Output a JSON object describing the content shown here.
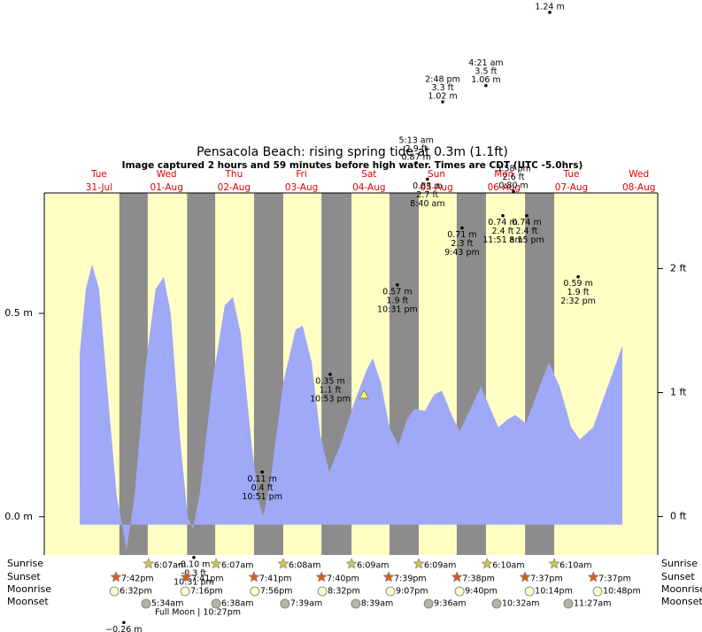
{
  "chart_data": {
    "type": "area",
    "title": "Pensacola Beach: rising  spring tide at 0.3m (1.1ft)",
    "subtitle": "Image captured 2 hours and 59 minutes before high water. Times are CDT (UTC -5.0hrs)",
    "xlim": [
      -7.5,
      210.7
    ],
    "ylim": [
      -0.094,
      0.796
    ],
    "yticks": [
      {
        "value": 0,
        "label": "0.0 m"
      },
      {
        "value": 0.5,
        "label": "0.5 m"
      }
    ],
    "y2lim": [
      -0.31,
      2.61
    ],
    "y2ticks": [
      {
        "value": 0,
        "label": "0 ft"
      },
      {
        "value": 1,
        "label": "1 ft"
      },
      {
        "value": 2,
        "label": "2 ft"
      }
    ],
    "color": "#a0a8f8",
    "background": "#ffffc4",
    "night_color": "#8c8c8c",
    "days": [
      {
        "x": 12,
        "weekday": "Tue",
        "date": "31-Jul"
      },
      {
        "x": 36,
        "weekday": "Wed",
        "date": "01-Aug"
      },
      {
        "x": 60,
        "weekday": "Thu",
        "date": "02-Aug"
      },
      {
        "x": 84,
        "weekday": "Fri",
        "date": "03-Aug"
      },
      {
        "x": 108,
        "weekday": "Sat",
        "date": "04-Aug"
      },
      {
        "x": 132,
        "weekday": "Sun",
        "date": "05-Aug"
      },
      {
        "x": 156,
        "weekday": "Mon",
        "date": "06-Aug"
      },
      {
        "x": 180,
        "weekday": "Tue",
        "date": "07-Aug"
      },
      {
        "x": 204,
        "weekday": "Wed",
        "date": "08-Aug"
      }
    ],
    "nights": [
      [
        19.2,
        29.3
      ],
      [
        43.3,
        53.3
      ],
      [
        67.1,
        77.5
      ],
      [
        91.1,
        101.8
      ],
      [
        115.3,
        125.7
      ],
      [
        139.2,
        149.6
      ],
      [
        163.5,
        173.9
      ]
    ],
    "x": [
      5.1,
      7.3,
      9.5,
      12.0,
      15.1,
      18.3,
      21.8,
      24.6,
      28.7,
      32.1,
      35.0,
      37.5,
      40.7,
      43.5,
      45.4,
      47.9,
      52.3,
      56.7,
      59.6,
      62.4,
      66.2,
      68.7,
      70.3,
      72.8,
      77.5,
      81.9,
      84.4,
      87.6,
      90.7,
      93.9,
      98.0,
      102.7,
      107.1,
      109.3,
      112.2,
      115.3,
      118.4,
      121.6,
      124.1,
      127.9,
      131.1,
      133.9,
      137.4,
      140.2,
      143.7,
      147.8,
      150.9,
      154.0,
      157.5,
      160.0,
      163.8,
      167.6,
      172.0,
      175.8,
      179.9,
      183.0,
      187.7,
      193.4,
      198.1
    ],
    "values": [
      0.4,
      0.56,
      0.62,
      0.56,
      0.3,
      0.05,
      -0.08,
      0.05,
      0.38,
      0.56,
      0.59,
      0.5,
      0.2,
      0.0,
      -0.03,
      0.06,
      0.33,
      0.52,
      0.54,
      0.45,
      0.18,
      0.04,
      0.0,
      0.08,
      0.33,
      0.46,
      0.47,
      0.38,
      0.2,
      0.11,
      0.18,
      0.28,
      0.36,
      0.39,
      0.33,
      0.22,
      0.176,
      0.24,
      0.265,
      0.26,
      0.3,
      0.31,
      0.25,
      0.21,
      0.26,
      0.32,
      0.27,
      0.22,
      0.24,
      0.25,
      0.23,
      0.3,
      0.38,
      0.32,
      0.22,
      0.19,
      0.22,
      0.33,
      0.42
    ],
    "now": {
      "x": 106.2,
      "value": 0.3
    },
    "annotations": [
      {
        "x": 70.0,
        "value": 0.11,
        "lines": [
          "0.11 m",
          "0.4 ft",
          "10:51 pm"
        ],
        "placement": "below"
      },
      {
        "x": 94.2,
        "value": 0.35,
        "lines": [
          "0.35 m",
          "1.1 ft",
          "10:53 pm"
        ],
        "placement": "below"
      },
      {
        "x": 118.1,
        "value": 0.57,
        "lines": [
          "0.57 m",
          "1.9 ft",
          "10:31 pm"
        ],
        "placement": "below"
      },
      {
        "x": 141.1,
        "value": 0.71,
        "lines": [
          "0.71 m",
          "2.3 ft",
          "9:43 pm"
        ],
        "placement": "below"
      },
      {
        "x": 155.6,
        "value": 0.74,
        "lines": [
          "0.74 m",
          "2.4 ft",
          "11:51 am"
        ],
        "placement": "below"
      },
      {
        "x": 164.1,
        "value": 0.74,
        "lines": [
          "0.74 m",
          "2.4 ft",
          "8:15 pm"
        ],
        "placement": "below"
      },
      {
        "x": 182.4,
        "value": 0.59,
        "lines": [
          "0.59 m",
          "1.9 ft",
          "2:32 pm"
        ],
        "placement": "below"
      },
      {
        "x": 128.8,
        "value": 0.83,
        "lines": [
          "0.83 m",
          "2.7 ft",
          "8:40 am"
        ],
        "placement": "below"
      },
      {
        "x": 124.8,
        "value": 0.87,
        "lines": [
          "5:13 am",
          "2.9 ft",
          "0.87 m"
        ],
        "placement": "above"
      },
      {
        "x": 134.2,
        "value": 1.02,
        "lines": [
          "2:48 pm",
          "3.3 ft",
          "1.02 m"
        ],
        "placement": "above"
      },
      {
        "x": 149.6,
        "value": 1.06,
        "lines": [
          "4:21 am",
          "3.5 ft",
          "1.06 m"
        ],
        "placement": "above"
      },
      {
        "x": 159.4,
        "value": 0.8,
        "lines": [
          "5:58 pm",
          "2.6 ft",
          "0.80 m"
        ],
        "placement": "above"
      },
      {
        "x": 172.3,
        "value": 1.24,
        "lines": [
          "1.24 m"
        ],
        "placement": "above"
      },
      {
        "x": 45.7,
        "value": -0.1,
        "lines": [
          "-0.10 m",
          "-0.3 ft",
          "10:31 pm"
        ],
        "placement": "below"
      },
      {
        "x": 20.8,
        "value": -0.26,
        "lines": [
          "−0.26 m"
        ],
        "placement": "below"
      }
    ],
    "rows": [
      {
        "name": "Sunrise",
        "icon": "star",
        "color": "#c8c84a",
        "events": [
          {
            "x": 29.6,
            "time": "6:07am"
          },
          {
            "x": 53.6,
            "time": "6:07am"
          },
          {
            "x": 77.5,
            "time": "6:08am"
          },
          {
            "x": 101.8,
            "time": "6:09am"
          },
          {
            "x": 125.7,
            "time": "6:09am"
          },
          {
            "x": 150.0,
            "time": "6:10am"
          },
          {
            "x": 173.9,
            "time": "6:10am"
          }
        ]
      },
      {
        "name": "Sunset",
        "icon": "star",
        "color": "#d2601e",
        "events": [
          {
            "x": 18.0,
            "time": "7:42pm"
          },
          {
            "x": 42.9,
            "time": "7:41pm"
          },
          {
            "x": 67.1,
            "time": "7:41pm"
          },
          {
            "x": 91.1,
            "time": "7:40pm"
          },
          {
            "x": 115.0,
            "time": "7:39pm"
          },
          {
            "x": 139.3,
            "time": "7:38pm"
          },
          {
            "x": 163.5,
            "time": "7:37pm"
          },
          {
            "x": 187.8,
            "time": "7:37pm"
          }
        ]
      },
      {
        "name": "Moonrise",
        "icon": "circle",
        "color": "#ffffd0",
        "events": [
          {
            "x": 17.4,
            "time": "6:32pm"
          },
          {
            "x": 42.6,
            "time": "7:16pm"
          },
          {
            "x": 67.4,
            "time": "7:56pm"
          },
          {
            "x": 91.4,
            "time": "8:32pm"
          },
          {
            "x": 115.6,
            "time": "9:07pm"
          },
          {
            "x": 140.2,
            "time": "9:40pm"
          },
          {
            "x": 165.1,
            "time": "10:14pm"
          },
          {
            "x": 189.3,
            "time": "10:48pm"
          }
        ]
      },
      {
        "name": "Moonset",
        "icon": "circle",
        "color": "#b4b4a8",
        "events": [
          {
            "x": 28.7,
            "time": "5:34am"
          },
          {
            "x": 53.6,
            "time": "6:38am"
          },
          {
            "x": 78.1,
            "time": "7:39am"
          },
          {
            "x": 103.3,
            "time": "8:39am"
          },
          {
            "x": 129.2,
            "time": "9:36am"
          },
          {
            "x": 153.4,
            "time": "10:32am"
          },
          {
            "x": 178.9,
            "time": "11:27am"
          }
        ]
      }
    ],
    "moon_phase": "Full Moon | 10:27pm"
  }
}
